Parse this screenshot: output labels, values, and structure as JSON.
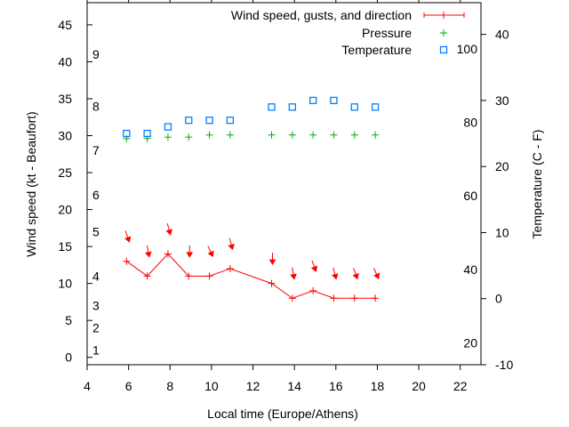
{
  "chart_data": {
    "type": "line",
    "xlabel": "Local time (Europe/Athens)",
    "ylabel": "Wind speed (kt - Beaufort)",
    "y2label": "Temperature (C - F)",
    "xlim": [
      4,
      23
    ],
    "ylim": [
      -1,
      48
    ],
    "y2lim": [
      -10,
      44.8
    ],
    "x_ticks": [
      4,
      6,
      8,
      10,
      12,
      14,
      16,
      18,
      20,
      22
    ],
    "y_ticks": [
      0,
      5,
      10,
      15,
      20,
      25,
      30,
      35,
      40,
      45
    ],
    "y2_ticks": [
      -10,
      0,
      10,
      20,
      30,
      40
    ],
    "beaufort_labels": [
      {
        "label": "1",
        "kt": 1
      },
      {
        "label": "2",
        "kt": 4
      },
      {
        "label": "3",
        "kt": 7
      },
      {
        "label": "4",
        "kt": 11
      },
      {
        "label": "5",
        "kt": 17
      },
      {
        "label": "6",
        "kt": 22
      },
      {
        "label": "7",
        "kt": 28
      },
      {
        "label": "8",
        "kt": 34
      },
      {
        "label": "9",
        "kt": 41
      }
    ],
    "fahrenheit_labels": [
      {
        "label": "20",
        "c": -6.7
      },
      {
        "label": "40",
        "c": 4.4
      },
      {
        "label": "60",
        "c": 15.6
      },
      {
        "label": "80",
        "c": 26.7
      },
      {
        "label": "100",
        "c": 37.8
      }
    ],
    "legend_position": "top-right",
    "legend": [
      "Wind speed, gusts, and direction",
      "Pressure",
      "Temperature"
    ],
    "x": [
      5.9,
      6.9,
      7.9,
      8.9,
      9.9,
      10.9,
      12.9,
      13.9,
      14.9,
      15.9,
      16.9,
      17.9
    ],
    "series": [
      {
        "name": "Wind speed, gusts, and direction",
        "axis": "y",
        "color": "#ff0000",
        "values": [
          13,
          11,
          14,
          11,
          11,
          12,
          10,
          8,
          9,
          8,
          8,
          8
        ],
        "direction_deg": [
          340,
          350,
          345,
          360,
          335,
          345,
          360,
          350,
          340,
          345,
          340,
          335
        ]
      },
      {
        "name": "Pressure",
        "axis": "y",
        "color": "#00b000",
        "values": [
          29.6,
          29.6,
          29.8,
          29.8,
          30.1,
          30.1,
          30.1,
          30.1,
          30.1,
          30.1,
          30.1,
          30.1
        ]
      },
      {
        "name": "Temperature",
        "axis": "y2",
        "color": "#0080ff",
        "values": [
          25,
          25,
          26,
          27,
          27,
          27,
          29,
          29,
          30,
          30,
          29,
          29
        ]
      }
    ]
  }
}
